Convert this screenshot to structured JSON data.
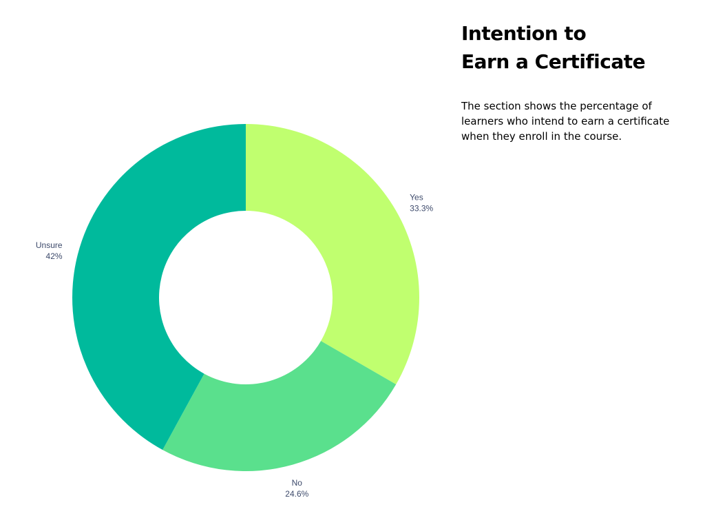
{
  "header": {
    "title_lines": [
      "Intention to",
      "Earn a Certificate"
    ],
    "description": "The section shows the percentage of learners who intend to earn a certificate when they enroll in the course."
  },
  "chart_data": {
    "type": "pie",
    "donut": true,
    "slices": [
      {
        "label": "Yes",
        "value": 33.3,
        "value_label": "33.3%",
        "color": "#C0FF6F"
      },
      {
        "label": "No",
        "value": 24.6,
        "value_label": "24.6%",
        "color": "#5AE08D"
      },
      {
        "label": "Unsure",
        "value": 42,
        "value_label": "42%",
        "color": "#00BA9C"
      }
    ]
  }
}
